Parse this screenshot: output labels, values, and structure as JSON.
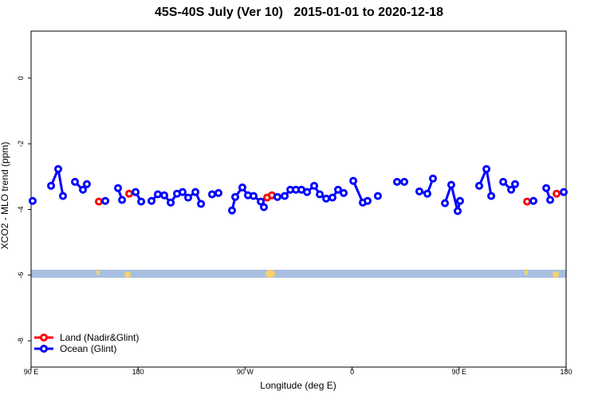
{
  "chart_data": {
    "type": "line",
    "title": "45S-40S July (Ver 10)   2015-01-01 to 2020-12-18",
    "xlabel": "Longitude (deg E)",
    "ylabel": "XCO2 - MLO trend (ppm)",
    "xlim": [
      90,
      540
    ],
    "ylim": [
      -8.8,
      1.43
    ],
    "xticks": [
      {
        "value": 90,
        "label": "90 E"
      },
      {
        "value": 180,
        "label": "180"
      },
      {
        "value": 270,
        "label": "90 W"
      },
      {
        "value": 360,
        "label": "0"
      },
      {
        "value": 450,
        "label": "90 E"
      },
      {
        "value": 540,
        "label": "180"
      }
    ],
    "yticks": [
      0,
      -2,
      -4,
      -6,
      -8
    ],
    "legend": "bottom-left",
    "series": [
      {
        "name": "Land (Nadir&Glint)",
        "color": "#ff0000",
        "x": [
          147.0,
          null,
          172.5,
          null,
          288.5,
          292.5,
          null,
          507.2,
          null,
          532.0
        ],
        "values": [
          -3.76,
          null,
          -3.52,
          null,
          -3.64,
          -3.57,
          null,
          -3.76,
          null,
          -3.52
        ]
      },
      {
        "name": "Ocean (Glint)",
        "color": "#0000ff",
        "x": [
          91.3,
          null,
          106.8,
          112.8,
          116.8,
          null,
          126.9,
          133.6,
          136.9,
          null,
          152.4,
          null,
          163.1,
          166.5,
          null,
          177.9,
          182.6,
          null,
          191.3,
          196.6,
          202.0,
          207.4,
          212.7,
          217.4,
          222.1,
          228.2,
          232.9,
          null,
          242.2,
          247.6,
          null,
          259.0,
          261.7,
          267.7,
          272.4,
          277.1,
          283.2,
          285.8,
          null,
          297.2,
          303.3,
          308.0,
          312.7,
          317.4,
          322.1,
          328.1,
          332.8,
          338.2,
          343.5,
          348.2,
          352.9,
          null,
          361.0,
          369.0,
          373.0,
          null,
          381.7,
          null,
          397.8,
          403.9,
          null,
          416.6,
          423.3,
          428.0,
          null,
          438.1,
          443.4,
          448.8,
          450.8,
          null,
          466.9,
          473.0,
          477.0,
          null,
          487.1,
          493.8,
          497.1,
          null,
          512.5,
          null,
          523.3,
          526.6,
          null,
          538.0
        ],
        "values": [
          -3.74,
          null,
          -3.28,
          -2.77,
          -3.59,
          null,
          -3.16,
          -3.4,
          -3.23,
          null,
          -3.74,
          null,
          -3.35,
          -3.71,
          null,
          -3.47,
          -3.76,
          null,
          -3.74,
          -3.54,
          -3.57,
          -3.79,
          -3.52,
          -3.47,
          -3.64,
          -3.47,
          -3.83,
          null,
          -3.54,
          -3.5,
          null,
          -4.03,
          -3.62,
          -3.33,
          -3.57,
          -3.59,
          -3.76,
          -3.93,
          null,
          -3.62,
          -3.59,
          -3.4,
          -3.4,
          -3.4,
          -3.47,
          -3.28,
          -3.54,
          -3.67,
          -3.64,
          -3.4,
          -3.5,
          null,
          -3.13,
          -3.79,
          -3.74,
          null,
          -3.59,
          null,
          -3.16,
          -3.16,
          null,
          -3.45,
          -3.52,
          -3.06,
          null,
          -3.81,
          -3.25,
          -4.05,
          -3.74,
          null,
          -3.28,
          -2.77,
          -3.59,
          null,
          -3.16,
          -3.4,
          -3.23,
          null,
          -3.74,
          null,
          -3.35,
          -3.71,
          null,
          -3.47
        ]
      }
    ]
  }
}
